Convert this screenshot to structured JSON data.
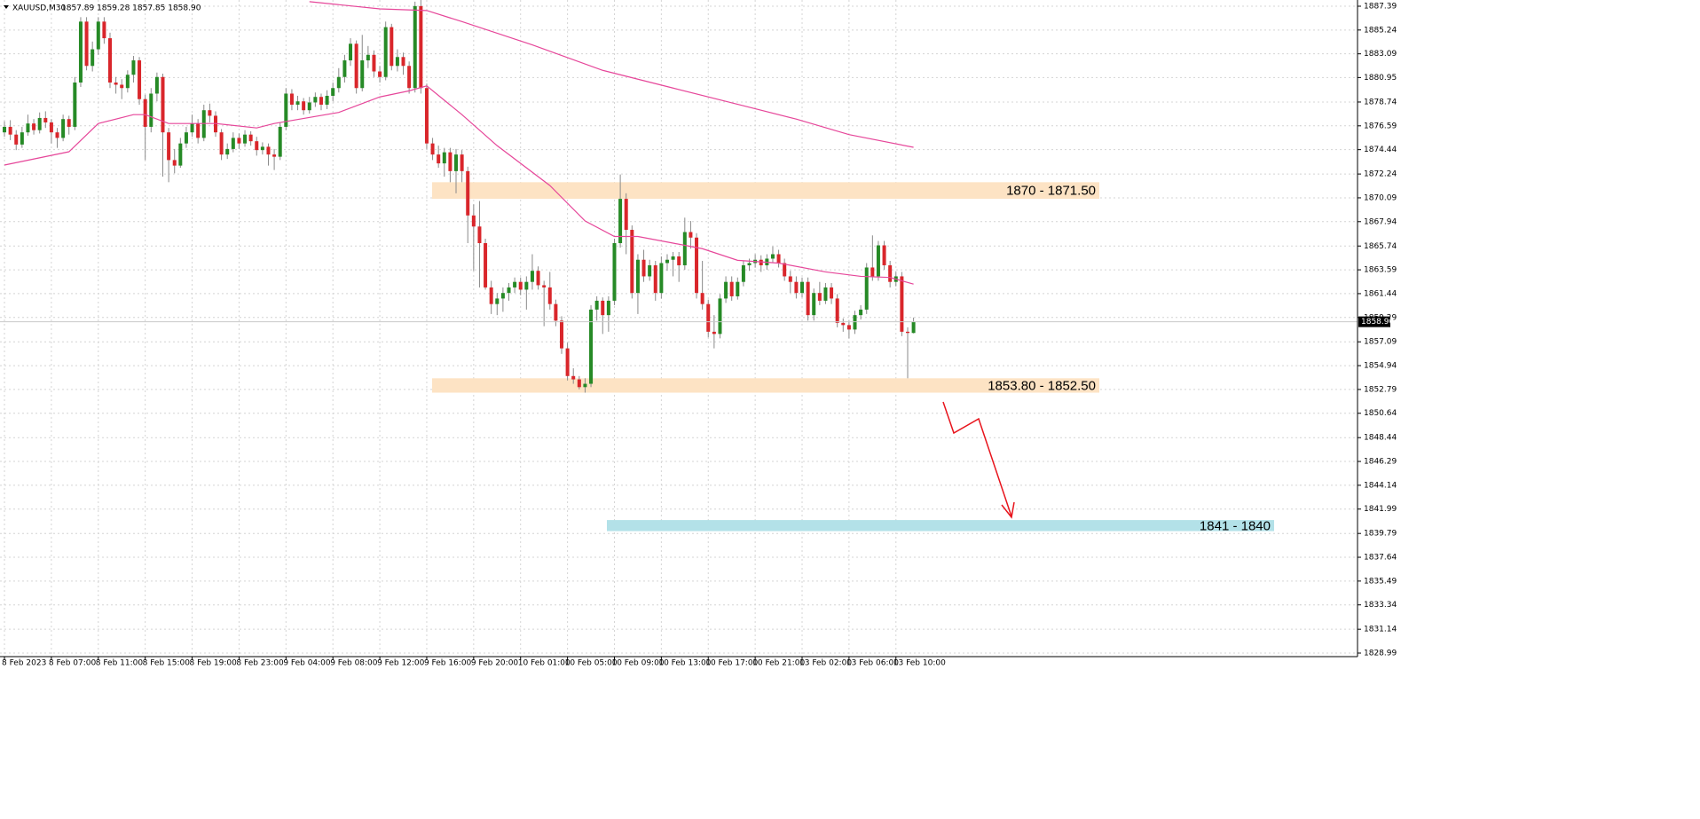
{
  "chart_data": {
    "type": "candlestick",
    "title": "XAUUSD,M30",
    "header_quote": "1857.89 1859.28 1857.85 1858.90",
    "bull_color": "#268a26",
    "bear_color": "#d9262b",
    "wick_color": "#8a8a8a",
    "grid": true,
    "xlim": [
      -0.76,
      230.7
    ],
    "ylim": [
      1828.67,
      1887.95
    ],
    "yticks": [
      1887.39,
      1885.24,
      1883.09,
      1880.95,
      1878.74,
      1876.59,
      1874.44,
      1872.24,
      1870.09,
      1867.94,
      1865.74,
      1863.59,
      1861.44,
      1859.29,
      1857.09,
      1854.94,
      1852.79,
      1850.64,
      1848.44,
      1846.29,
      1844.14,
      1841.99,
      1839.79,
      1837.64,
      1835.49,
      1833.34,
      1831.14,
      1828.99
    ],
    "xticks": [
      {
        "value": 0,
        "label": "8 Feb 2023"
      },
      {
        "value": 8,
        "label": "8 Feb 07:00"
      },
      {
        "value": 16,
        "label": "8 Feb 11:00"
      },
      {
        "value": 24,
        "label": "8 Feb 15:00"
      },
      {
        "value": 32,
        "label": "8 Feb 19:00"
      },
      {
        "value": 40,
        "label": "8 Feb 23:00"
      },
      {
        "value": 48,
        "label": "9 Feb 04:00"
      },
      {
        "value": 56,
        "label": "9 Feb 08:00"
      },
      {
        "value": 64,
        "label": "9 Feb 12:00"
      },
      {
        "value": 72,
        "label": "9 Feb 16:00"
      },
      {
        "value": 80,
        "label": "9 Feb 20:00"
      },
      {
        "value": 88,
        "label": "10 Feb 01:00"
      },
      {
        "value": 96,
        "label": "10 Feb 05:00"
      },
      {
        "value": 104,
        "label": "10 Feb 09:00"
      },
      {
        "value": 112,
        "label": "10 Feb 13:00"
      },
      {
        "value": 120,
        "label": "10 Feb 17:00"
      },
      {
        "value": 128,
        "label": "10 Feb 21:00"
      },
      {
        "value": 136,
        "label": "13 Feb 02:00"
      },
      {
        "value": 144,
        "label": "13 Feb 06:00"
      },
      {
        "value": 152,
        "label": "13 Feb 10:00"
      }
    ],
    "current_price": {
      "value": 1858.9,
      "label": "1858.90"
    },
    "candles": [
      [
        1876.0,
        1877.0,
        1875.6,
        1876.5
      ],
      [
        1876.5,
        1877.1,
        1875.3,
        1875.8
      ],
      [
        1875.8,
        1876.2,
        1874.4,
        1874.9
      ],
      [
        1874.9,
        1876.5,
        1874.6,
        1876.0
      ],
      [
        1876.0,
        1877.6,
        1875.7,
        1876.8
      ],
      [
        1876.8,
        1877.2,
        1875.8,
        1876.2
      ],
      [
        1876.2,
        1877.8,
        1875.9,
        1877.3
      ],
      [
        1877.3,
        1877.9,
        1876.4,
        1876.9
      ],
      [
        1876.9,
        1877.2,
        1875.0,
        1876.0
      ],
      [
        1876.0,
        1876.4,
        1874.6,
        1875.5
      ],
      [
        1875.5,
        1877.6,
        1875.2,
        1877.2
      ],
      [
        1877.2,
        1877.5,
        1875.8,
        1876.5
      ],
      [
        1876.5,
        1881.0,
        1876.2,
        1880.5
      ],
      [
        1880.5,
        1886.4,
        1880.1,
        1886.0
      ],
      [
        1886.0,
        1886.4,
        1881.6,
        1882.0
      ],
      [
        1882.0,
        1884.2,
        1881.5,
        1883.5
      ],
      [
        1883.5,
        1886.4,
        1883.0,
        1886.0
      ],
      [
        1886.0,
        1886.4,
        1884.0,
        1884.5
      ],
      [
        1884.5,
        1885.0,
        1880.0,
        1880.5
      ],
      [
        1880.5,
        1881.0,
        1879.5,
        1880.3
      ],
      [
        1880.3,
        1880.8,
        1879.0,
        1880.0
      ],
      [
        1880.0,
        1881.6,
        1879.6,
        1881.2
      ],
      [
        1881.2,
        1882.9,
        1880.5,
        1882.5
      ],
      [
        1882.5,
        1882.8,
        1878.5,
        1879.0
      ],
      [
        1879.0,
        1879.4,
        1873.5,
        1876.5
      ],
      [
        1876.5,
        1880.0,
        1876.0,
        1879.5
      ],
      [
        1879.5,
        1881.4,
        1878.8,
        1881.0
      ],
      [
        1881.0,
        1881.3,
        1872.0,
        1876.0
      ],
      [
        1876.0,
        1876.4,
        1871.5,
        1873.5
      ],
      [
        1873.5,
        1874.5,
        1872.3,
        1873.0
      ],
      [
        1873.0,
        1875.5,
        1872.8,
        1875.0
      ],
      [
        1875.0,
        1876.5,
        1874.6,
        1876.0
      ],
      [
        1876.0,
        1877.6,
        1875.6,
        1876.8
      ],
      [
        1876.8,
        1877.2,
        1875.0,
        1875.5
      ],
      [
        1875.5,
        1878.5,
        1875.2,
        1878.0
      ],
      [
        1878.0,
        1878.6,
        1876.9,
        1877.5
      ],
      [
        1877.5,
        1877.9,
        1875.6,
        1876.0
      ],
      [
        1876.0,
        1876.3,
        1873.5,
        1874.0
      ],
      [
        1874.0,
        1875.0,
        1873.6,
        1874.5
      ],
      [
        1874.5,
        1876.0,
        1874.2,
        1875.5
      ],
      [
        1875.5,
        1875.9,
        1874.5,
        1875.0
      ],
      [
        1875.0,
        1876.2,
        1874.7,
        1875.8
      ],
      [
        1875.8,
        1876.1,
        1874.8,
        1875.2
      ],
      [
        1875.2,
        1875.6,
        1873.9,
        1874.4
      ],
      [
        1874.4,
        1875.1,
        1874.0,
        1874.7
      ],
      [
        1874.7,
        1875.0,
        1873.0,
        1874.0
      ],
      [
        1874.0,
        1874.5,
        1872.6,
        1873.8
      ],
      [
        1873.8,
        1876.9,
        1873.5,
        1876.5
      ],
      [
        1876.5,
        1880.0,
        1876.2,
        1879.5
      ],
      [
        1879.5,
        1879.9,
        1878.0,
        1878.5
      ],
      [
        1878.5,
        1879.3,
        1878.0,
        1878.8
      ],
      [
        1878.8,
        1879.1,
        1877.6,
        1878.0
      ],
      [
        1878.0,
        1879.2,
        1877.7,
        1878.7
      ],
      [
        1878.7,
        1879.6,
        1878.3,
        1879.2
      ],
      [
        1879.2,
        1879.5,
        1878.0,
        1878.5
      ],
      [
        1878.5,
        1879.8,
        1878.1,
        1879.3
      ],
      [
        1879.3,
        1880.5,
        1878.8,
        1880.0
      ],
      [
        1880.0,
        1881.8,
        1879.6,
        1881.0
      ],
      [
        1881.0,
        1883.0,
        1880.5,
        1882.5
      ],
      [
        1882.5,
        1884.5,
        1882.0,
        1884.0
      ],
      [
        1884.0,
        1884.3,
        1879.5,
        1880.0
      ],
      [
        1880.0,
        1884.8,
        1879.7,
        1882.5
      ],
      [
        1882.5,
        1883.8,
        1881.8,
        1883.0
      ],
      [
        1883.0,
        1883.4,
        1881.0,
        1881.5
      ],
      [
        1881.5,
        1882.0,
        1880.5,
        1881.0
      ],
      [
        1881.0,
        1886.0,
        1880.7,
        1885.5
      ],
      [
        1885.5,
        1885.8,
        1881.6,
        1882.0
      ],
      [
        1882.0,
        1883.5,
        1881.5,
        1882.8
      ],
      [
        1882.8,
        1883.2,
        1881.2,
        1882.0
      ],
      [
        1882.0,
        1882.4,
        1879.5,
        1880.0
      ],
      [
        1880.0,
        1887.8,
        1879.6,
        1887.4
      ],
      [
        1887.4,
        1888.0,
        1879.5,
        1880.0
      ],
      [
        1880.0,
        1880.4,
        1874.5,
        1875.0
      ],
      [
        1875.0,
        1875.5,
        1873.5,
        1874.0
      ],
      [
        1874.0,
        1874.8,
        1872.8,
        1873.2
      ],
      [
        1873.2,
        1874.6,
        1872.0,
        1874.2
      ],
      [
        1874.2,
        1874.6,
        1871.5,
        1872.5
      ],
      [
        1872.5,
        1874.5,
        1870.5,
        1874.0
      ],
      [
        1874.0,
        1874.4,
        1871.5,
        1872.5
      ],
      [
        1872.5,
        1872.9,
        1866.0,
        1868.5
      ],
      [
        1868.5,
        1869.5,
        1863.5,
        1867.5
      ],
      [
        1867.5,
        1869.8,
        1862.0,
        1866.0
      ],
      [
        1866.0,
        1866.4,
        1861.8,
        1862.0
      ],
      [
        1862.0,
        1862.6,
        1859.6,
        1860.5
      ],
      [
        1860.5,
        1861.5,
        1859.5,
        1861.0
      ],
      [
        1861.0,
        1862.0,
        1859.8,
        1861.5
      ],
      [
        1861.5,
        1862.4,
        1860.8,
        1862.0
      ],
      [
        1862.0,
        1862.9,
        1861.5,
        1862.5
      ],
      [
        1862.5,
        1862.9,
        1861.3,
        1861.8
      ],
      [
        1861.8,
        1863.0,
        1860.0,
        1862.5
      ],
      [
        1862.5,
        1865.0,
        1861.8,
        1863.5
      ],
      [
        1863.5,
        1863.9,
        1861.8,
        1862.2
      ],
      [
        1862.2,
        1862.6,
        1858.5,
        1862.0
      ],
      [
        1862.0,
        1863.4,
        1860.0,
        1860.5
      ],
      [
        1860.5,
        1860.9,
        1858.5,
        1859.0
      ],
      [
        1859.0,
        1859.4,
        1856.0,
        1856.5
      ],
      [
        1856.5,
        1857.0,
        1853.6,
        1854.0
      ],
      [
        1854.0,
        1854.7,
        1853.3,
        1853.7
      ],
      [
        1853.7,
        1854.0,
        1852.8,
        1853.0
      ],
      [
        1853.0,
        1853.8,
        1852.5,
        1853.3
      ],
      [
        1853.3,
        1860.4,
        1853.0,
        1860.0
      ],
      [
        1860.0,
        1861.2,
        1859.0,
        1860.8
      ],
      [
        1860.8,
        1861.1,
        1857.8,
        1859.5
      ],
      [
        1859.5,
        1861.2,
        1858.0,
        1860.8
      ],
      [
        1860.8,
        1866.4,
        1860.4,
        1866.0
      ],
      [
        1866.0,
        1872.2,
        1865.6,
        1870.0
      ],
      [
        1870.0,
        1870.5,
        1865.0,
        1867.2
      ],
      [
        1867.2,
        1867.6,
        1861.0,
        1861.5
      ],
      [
        1861.5,
        1865.0,
        1859.6,
        1864.5
      ],
      [
        1864.5,
        1865.4,
        1862.5,
        1863.0
      ],
      [
        1863.0,
        1864.5,
        1862.6,
        1864.0
      ],
      [
        1864.0,
        1864.4,
        1860.8,
        1861.5
      ],
      [
        1861.5,
        1864.8,
        1861.0,
        1864.2
      ],
      [
        1864.2,
        1865.0,
        1863.5,
        1864.5
      ],
      [
        1864.5,
        1865.2,
        1863.0,
        1864.8
      ],
      [
        1864.8,
        1865.2,
        1862.5,
        1864.0
      ],
      [
        1864.0,
        1868.3,
        1863.6,
        1867.0
      ],
      [
        1867.0,
        1868.0,
        1865.5,
        1866.5
      ],
      [
        1866.5,
        1866.9,
        1861.0,
        1861.5
      ],
      [
        1861.5,
        1864.4,
        1860.0,
        1860.5
      ],
      [
        1860.5,
        1860.9,
        1857.5,
        1858.0
      ],
      [
        1858.0,
        1859.5,
        1856.5,
        1857.8
      ],
      [
        1857.8,
        1861.4,
        1857.4,
        1861.0
      ],
      [
        1861.0,
        1863.0,
        1860.6,
        1862.5
      ],
      [
        1862.5,
        1863.0,
        1860.8,
        1861.2
      ],
      [
        1861.2,
        1862.9,
        1860.9,
        1862.5
      ],
      [
        1862.5,
        1864.4,
        1862.1,
        1864.0
      ],
      [
        1864.0,
        1864.6,
        1863.5,
        1864.2
      ],
      [
        1864.2,
        1865.0,
        1863.8,
        1864.5
      ],
      [
        1864.5,
        1864.9,
        1863.4,
        1864.0
      ],
      [
        1864.0,
        1865.0,
        1863.6,
        1864.6
      ],
      [
        1864.6,
        1865.7,
        1864.2,
        1865.0
      ],
      [
        1865.0,
        1865.4,
        1863.8,
        1864.2
      ],
      [
        1864.2,
        1864.6,
        1862.6,
        1863.0
      ],
      [
        1863.0,
        1863.5,
        1861.5,
        1862.5
      ],
      [
        1862.5,
        1863.0,
        1861.0,
        1861.5
      ],
      [
        1861.5,
        1862.9,
        1861.1,
        1862.5
      ],
      [
        1862.5,
        1862.9,
        1859.0,
        1859.5
      ],
      [
        1859.5,
        1861.9,
        1859.0,
        1861.5
      ],
      [
        1861.5,
        1862.5,
        1860.4,
        1860.8
      ],
      [
        1860.8,
        1862.4,
        1860.5,
        1862.0
      ],
      [
        1862.0,
        1862.4,
        1860.5,
        1861.0
      ],
      [
        1861.0,
        1861.4,
        1858.4,
        1858.8
      ],
      [
        1858.8,
        1859.2,
        1858.0,
        1858.6
      ],
      [
        1858.6,
        1859.0,
        1857.4,
        1858.2
      ],
      [
        1858.2,
        1859.9,
        1857.8,
        1859.5
      ],
      [
        1859.5,
        1860.4,
        1859.1,
        1860.0
      ],
      [
        1860.0,
        1864.2,
        1859.6,
        1863.8
      ],
      [
        1863.8,
        1866.7,
        1862.6,
        1863.0
      ],
      [
        1863.0,
        1866.2,
        1862.6,
        1865.8
      ],
      [
        1865.8,
        1866.2,
        1863.6,
        1864.0
      ],
      [
        1864.0,
        1864.4,
        1862.0,
        1862.5
      ],
      [
        1862.5,
        1863.4,
        1862.1,
        1863.0
      ],
      [
        1863.0,
        1863.4,
        1857.6,
        1858.0
      ],
      [
        1858.0,
        1858.4,
        1853.8,
        1857.89
      ],
      [
        1857.89,
        1859.28,
        1857.85,
        1858.9
      ]
    ],
    "moving_averages": [
      {
        "color": "#e6479a",
        "x": [
          0,
          11,
          16,
          22,
          24,
          28,
          36,
          43,
          46,
          57,
          60,
          64,
          69,
          72,
          78,
          84,
          93,
          99,
          104,
          108,
          114,
          119,
          125,
          132,
          140,
          146,
          151,
          155
        ],
        "values": [
          1873.05,
          1874.25,
          1876.8,
          1877.6,
          1877.6,
          1876.8,
          1876.8,
          1876.4,
          1876.8,
          1877.8,
          1878.4,
          1879.2,
          1879.75,
          1880.2,
          1877.6,
          1874.8,
          1871.2,
          1868.0,
          1866.6,
          1866.6,
          1866.0,
          1865.5,
          1864.45,
          1864.2,
          1863.4,
          1863.0,
          1862.9,
          1862.3
        ]
      },
      {
        "color": "#e6479a",
        "x": [
          52,
          64,
          72,
          78,
          90,
          102,
          114,
          126,
          135,
          144,
          155
        ],
        "values": [
          1887.8,
          1887.15,
          1887.0,
          1886.0,
          1883.9,
          1881.6,
          1880.0,
          1878.4,
          1877.2,
          1875.8,
          1874.65
        ]
      }
    ],
    "zones": [
      {
        "low": 1870,
        "high": 1871.5,
        "label": "1870 - 1871.50",
        "color": "#fde3c4"
      },
      {
        "low": 1852.5,
        "high": 1853.8,
        "label": "1853.80 - 1852.50",
        "color": "#fde3c4"
      },
      {
        "low": 1840,
        "high": 1841,
        "label": "1841 - 1840",
        "color": "#b3e1e8"
      }
    ]
  }
}
